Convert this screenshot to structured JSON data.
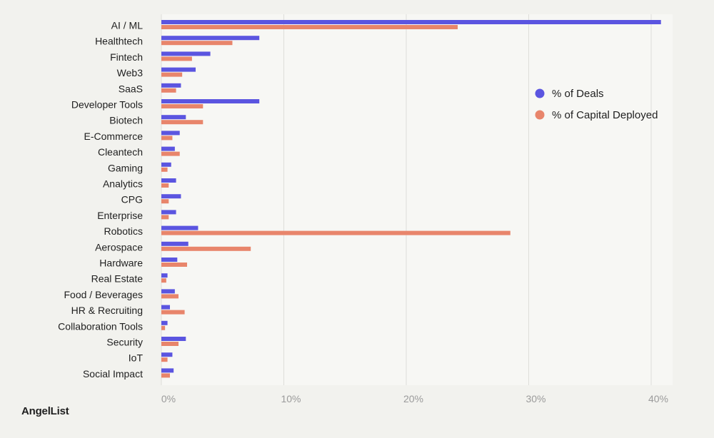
{
  "brand": "AngelList",
  "colors": {
    "deals": "#5b55e0",
    "capital": "#e8856b",
    "grid": "#dededa",
    "plot_bg": "#f7f7f4"
  },
  "chart_data": {
    "type": "bar",
    "orientation": "horizontal",
    "title": "",
    "xlabel": "",
    "ylabel": "",
    "xlim": [
      0,
      42
    ],
    "xticks": [
      0,
      10,
      20,
      30,
      40
    ],
    "xtick_labels": [
      "0%",
      "10%",
      "20%",
      "30%",
      "40%"
    ],
    "legend_position": "right",
    "grid": true,
    "categories": [
      "AI / ML",
      "Healthtech",
      "Fintech",
      "Web3",
      "SaaS",
      "Developer Tools",
      "Biotech",
      "E-Commerce",
      "Cleantech",
      "Gaming",
      "Analytics",
      "CPG",
      "Enterprise",
      "Robotics",
      "Aerospace",
      "Hardware",
      "Real Estate",
      "Food / Beverages",
      "HR & Recruiting",
      "Collaboration Tools",
      "Security",
      "IoT",
      "Social Impact"
    ],
    "series": [
      {
        "name": "% of Deals",
        "values": [
          40.8,
          8.0,
          4.0,
          2.8,
          1.6,
          8.0,
          2.0,
          1.5,
          1.1,
          0.8,
          1.2,
          1.6,
          1.2,
          3.0,
          2.2,
          1.3,
          0.5,
          1.1,
          0.7,
          0.5,
          2.0,
          0.9,
          1.0
        ]
      },
      {
        "name": "% of Capital Deployed",
        "values": [
          24.2,
          5.8,
          2.5,
          1.7,
          1.2,
          3.4,
          3.4,
          0.9,
          1.5,
          0.5,
          0.6,
          0.6,
          0.6,
          28.5,
          7.3,
          2.1,
          0.4,
          1.4,
          1.9,
          0.3,
          1.4,
          0.5,
          0.7
        ]
      }
    ]
  }
}
